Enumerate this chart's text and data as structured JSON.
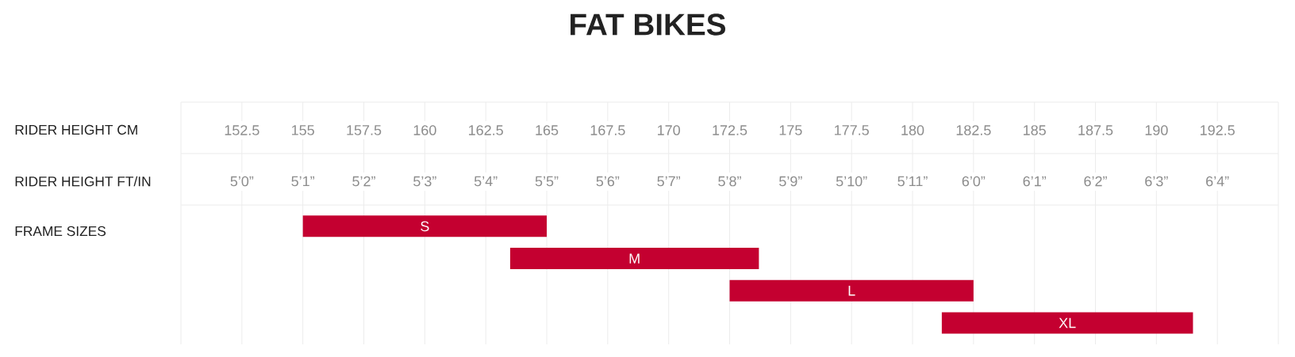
{
  "chart_data": {
    "type": "bar",
    "orientation": "horizontal",
    "title": "FAT BIKES",
    "xlabel": "RIDER HEIGHT CM",
    "categories": [
      "S",
      "M",
      "L",
      "XL"
    ],
    "base": [
      155,
      163.5,
      172.5,
      181.2
    ],
    "values": [
      10,
      10.2,
      10,
      10.3
    ],
    "color": "#c40030",
    "xlim": [
      150,
      195
    ],
    "xticks": [
      152.5,
      155,
      157.5,
      160,
      162.5,
      165,
      167.5,
      170,
      172.5,
      175,
      177.5,
      180,
      182.5,
      185,
      187.5,
      190,
      192.5
    ],
    "annotations": [
      "RIDER HEIGHT FT/IN",
      "FRAME SIZES",
      "5’0”",
      "5’1”",
      "5’2”",
      "5’3”",
      "5’4”",
      "5’5”",
      "5’6”",
      "5’7”",
      "5’8”",
      "5’9”",
      "5’10”",
      "5’11”",
      "6’0”",
      "6’1”",
      "6’2”",
      "6’3”",
      "6’4”"
    ],
    "grid": "x"
  }
}
